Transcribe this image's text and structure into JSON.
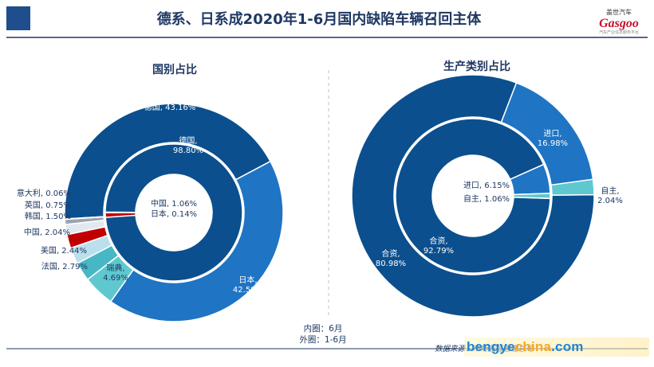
{
  "title": "德系、日系成2020年1-6月国内缺陷车辆召回主体",
  "logo": {
    "text_cn": "盖世汽车",
    "text_en": "Gasgoo",
    "tagline": "汽车产业信息服务平台"
  },
  "note": {
    "inner": "内圈：6月",
    "outer": "外圈：1-6月"
  },
  "source": "数据来源：市场监督管理总局",
  "watermark": "bengyechina.com",
  "colors": {
    "navy": "#0b4f8e",
    "blue": "#1f74c4",
    "teal": "#5fc8cf",
    "red": "#c00000",
    "lightblue": "#bcdfee",
    "pale": "#e2e8f0",
    "grey": "#9aa4ae",
    "title": "#1f3864"
  },
  "chart_data": [
    {
      "type": "donut",
      "title": "国别占比",
      "inner_ring": [
        {
          "name": "德国",
          "value": 98.8,
          "label": "德国,\n98.80%"
        },
        {
          "name": "中国",
          "value": 1.06,
          "label": "中国, 1.06%"
        },
        {
          "name": "日本",
          "value": 0.14,
          "label": "日本, 0.14%"
        }
      ],
      "outer_ring": [
        {
          "name": "德国",
          "value": 43.16,
          "label": "德国, 43.16%"
        },
        {
          "name": "日本",
          "value": 42.58,
          "label": "日本,\n42.58%"
        },
        {
          "name": "瑞典",
          "value": 4.69,
          "label": "瑞典,\n4.69%"
        },
        {
          "name": "法国",
          "value": 2.79,
          "label": "法国, 2.79%"
        },
        {
          "name": "美国",
          "value": 2.44,
          "label": "美国, 2.44%"
        },
        {
          "name": "中国",
          "value": 2.04,
          "label": "中国, 2.04%"
        },
        {
          "name": "韩国",
          "value": 1.5,
          "label": "韩国, 1.50%"
        },
        {
          "name": "英国",
          "value": 0.75,
          "label": "英国, 0.75%"
        },
        {
          "name": "意大利",
          "value": 0.06,
          "label": "意大利, 0.06%"
        }
      ]
    },
    {
      "type": "donut",
      "title": "生产类别占比",
      "inner_ring": [
        {
          "name": "合资",
          "value": 92.79,
          "label": "合资,\n92.79%"
        },
        {
          "name": "进口",
          "value": 6.15,
          "label": "进口, 6.15%"
        },
        {
          "name": "自主",
          "value": 1.06,
          "label": "自主, 1.06%"
        }
      ],
      "outer_ring": [
        {
          "name": "合资",
          "value": 80.98,
          "label": "合资,\n80.98%"
        },
        {
          "name": "进口",
          "value": 16.98,
          "label": "进口,\n16.98%"
        },
        {
          "name": "自主",
          "value": 2.04,
          "label": "自主,\n2.04%"
        }
      ]
    }
  ]
}
